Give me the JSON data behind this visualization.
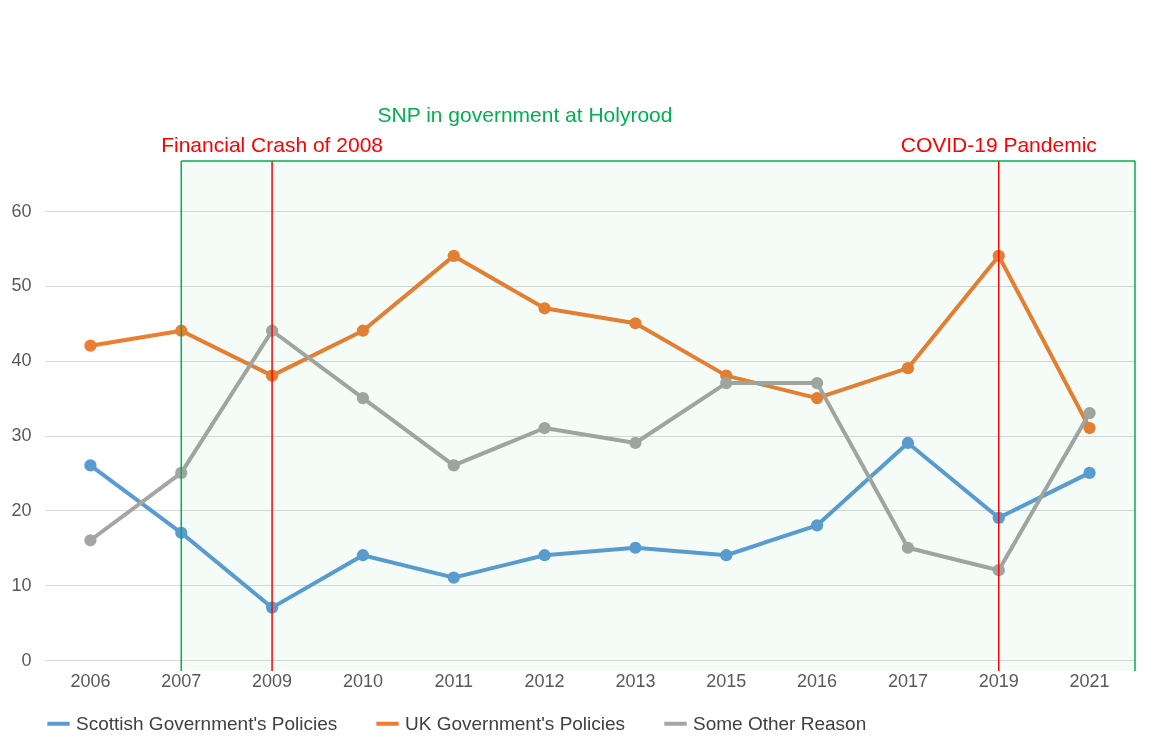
{
  "chart_data": {
    "type": "line",
    "categories": [
      "2006",
      "2007",
      "2009",
      "2010",
      "2011",
      "2012",
      "2013",
      "2015",
      "2016",
      "2017",
      "2019",
      "2021"
    ],
    "series": [
      {
        "name": "Scottish Government's Policies",
        "color": "#5b9bd5",
        "values": [
          26,
          17,
          7,
          14,
          11,
          14,
          15,
          14,
          18,
          29,
          19,
          25
        ]
      },
      {
        "name": "UK Government's Policies",
        "color": "#ed7d31",
        "values": [
          42,
          44,
          38,
          44,
          54,
          47,
          45,
          38,
          35,
          39,
          54,
          31
        ]
      },
      {
        "name": "Some Other Reason",
        "color": "#a5a5a5",
        "values": [
          16,
          25,
          44,
          35,
          26,
          31,
          29,
          37,
          37,
          15,
          12,
          33
        ]
      }
    ],
    "ylim": [
      0,
      60
    ],
    "yticks": [
      0,
      10,
      20,
      30,
      40,
      50,
      60
    ],
    "grid": "y",
    "legend": "bottom",
    "marker": "circle",
    "line_style": "solid",
    "ref_lines": [
      {
        "axis": "x",
        "value": "2009",
        "label": "Financial Crash of 2008",
        "color": "#ff0000"
      },
      {
        "axis": "x",
        "value": "2019",
        "label": "COVID-19 Pandemic",
        "color": "#ff0000"
      },
      {
        "axis": "x",
        "value": "2007",
        "color": "#00b050"
      }
    ],
    "bands": [
      {
        "axis": "x",
        "from": "2007",
        "to": "2021",
        "label": "SNP in government at Holyrood",
        "color": "#00b050"
      }
    ]
  }
}
